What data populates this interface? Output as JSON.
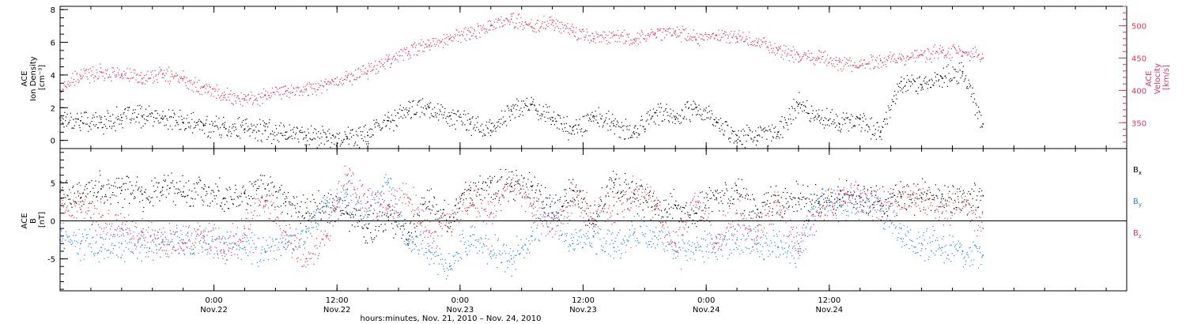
{
  "chart_data": [
    {
      "type": "scatter",
      "panel": "top",
      "left_axis_label": [
        "ACE",
        "Ion Density",
        "[cm⁻³]"
      ],
      "right_axis_label": [
        "ACE",
        "Velocity",
        "[km/s]"
      ],
      "left_ylim": [
        -0.5,
        8.2
      ],
      "right_ylim": [
        310,
        530
      ],
      "left_ticks": [
        "0",
        "2",
        "4",
        "6",
        "8"
      ],
      "left_tick_values": [
        0,
        2,
        4,
        6,
        8
      ],
      "right_ticks": [
        "350",
        "400",
        "450",
        "500"
      ],
      "right_tick_values": [
        350,
        400,
        450,
        500
      ],
      "right_color": "#e8335d",
      "series": [
        {
          "name": "Ion Density",
          "color": "#000000",
          "axis": "left",
          "x_hours": [
            0,
            2,
            4,
            6,
            8,
            10,
            12,
            14,
            16,
            18,
            20,
            22,
            24,
            26,
            28,
            30,
            32,
            34,
            36,
            38,
            40,
            42,
            44,
            46,
            48,
            50,
            52,
            54,
            56,
            58,
            60,
            62,
            64,
            66,
            68,
            70,
            72,
            74,
            76,
            78,
            80,
            82,
            84,
            86,
            88,
            90
          ],
          "values": [
            1.4,
            1.2,
            1.1,
            1.4,
            1.5,
            1.3,
            1.1,
            0.9,
            0.8,
            0.7,
            0.6,
            0.5,
            0.3,
            0.2,
            0.2,
            0.3,
            1.2,
            1.8,
            2.0,
            1.5,
            1.0,
            0.6,
            1.8,
            2.2,
            1.4,
            0.6,
            1.5,
            0.9,
            0.4,
            1.7,
            1.3,
            2.0,
            1.1,
            0.3,
            0.3,
            0.5,
            2.2,
            1.5,
            1.0,
            1.3,
            0.5,
            3.6,
            3.4,
            3.8,
            4.2,
            1.0
          ]
        },
        {
          "name": "Velocity",
          "color": "#e8335d",
          "axis": "right",
          "x_hours": [
            0,
            2,
            4,
            6,
            8,
            10,
            12,
            14,
            16,
            18,
            20,
            22,
            24,
            26,
            28,
            30,
            32,
            34,
            36,
            38,
            40,
            42,
            44,
            46,
            48,
            50,
            52,
            54,
            56,
            58,
            60,
            62,
            64,
            66,
            68,
            70,
            72,
            74,
            76,
            78,
            80,
            82,
            84,
            86,
            88,
            90
          ],
          "values": [
            400,
            422,
            428,
            425,
            418,
            425,
            418,
            405,
            392,
            385,
            392,
            398,
            402,
            410,
            420,
            430,
            448,
            460,
            470,
            480,
            490,
            500,
            510,
            498,
            505,
            490,
            480,
            485,
            478,
            488,
            492,
            478,
            485,
            480,
            474,
            462,
            455,
            450,
            444,
            438,
            446,
            448,
            455,
            458,
            460,
            450
          ]
        }
      ]
    },
    {
      "type": "scatter",
      "panel": "bottom",
      "left_axis_label": [
        "ACE",
        "B",
        "[nT]"
      ],
      "ylim": [
        -9.2,
        9.5
      ],
      "ticks": [
        "-5",
        "0",
        "5"
      ],
      "tick_values": [
        -5,
        0,
        5
      ],
      "zero_line": true,
      "series": [
        {
          "name": "Bx",
          "label_main": "B",
          "label_sub": "x",
          "color": "#000000",
          "x_hours": [
            0,
            2,
            4,
            6,
            8,
            10,
            12,
            14,
            16,
            18,
            20,
            22,
            24,
            26,
            28,
            30,
            32,
            34,
            36,
            38,
            40,
            42,
            44,
            46,
            48,
            50,
            52,
            54,
            56,
            58,
            60,
            62,
            64,
            66,
            68,
            70,
            72,
            74,
            76,
            78,
            80,
            82,
            84,
            86,
            88,
            90
          ],
          "values": [
            3.8,
            3.0,
            4.2,
            4.0,
            3.5,
            4.4,
            3.8,
            4.2,
            3.0,
            3.6,
            4.2,
            2.5,
            1.0,
            2.0,
            1.0,
            -1.0,
            0.5,
            -1.5,
            2.5,
            0.5,
            4.0,
            5.0,
            4.5,
            4.5,
            1.0,
            4.0,
            0.0,
            5.0,
            3.5,
            1.5,
            2.0,
            1.0,
            3.0,
            4.0,
            1.5,
            2.5,
            3.0,
            2.5,
            2.8,
            3.0,
            2.0,
            3.2,
            3.0,
            3.5,
            2.5,
            3.3
          ]
        },
        {
          "name": "By",
          "label_main": "B",
          "label_sub": "y",
          "color": "#1f86e0",
          "x_hours": [
            0,
            2,
            4,
            6,
            8,
            10,
            12,
            14,
            16,
            18,
            20,
            22,
            24,
            26,
            28,
            30,
            32,
            34,
            36,
            38,
            40,
            42,
            44,
            46,
            48,
            50,
            52,
            54,
            56,
            58,
            60,
            62,
            64,
            66,
            68,
            70,
            72,
            74,
            76,
            78,
            80,
            82,
            84,
            86,
            88,
            90
          ],
          "values": [
            -2.5,
            -3.0,
            -3.5,
            -3.0,
            -3.2,
            -2.8,
            -2.5,
            -2.8,
            -3.0,
            -3.5,
            -4.0,
            -3.0,
            -1.5,
            2.0,
            3.5,
            0.5,
            5.0,
            -3.0,
            -4.0,
            -6.0,
            -2.0,
            -4.0,
            -5.0,
            -2.0,
            1.0,
            -3.0,
            -2.0,
            -3.5,
            -1.5,
            -2.0,
            -4.0,
            -3.5,
            -3.0,
            -2.5,
            -3.0,
            -3.5,
            -4.0,
            3.0,
            2.0,
            2.5,
            1.5,
            -1.0,
            -3.0,
            -3.5,
            -4.0,
            -4.5
          ]
        },
        {
          "name": "Bz",
          "label_main": "B",
          "label_sub": "z",
          "color": "#e8335d",
          "x_hours": [
            0,
            2,
            4,
            6,
            8,
            10,
            12,
            14,
            16,
            18,
            20,
            22,
            24,
            26,
            28,
            30,
            32,
            34,
            36,
            38,
            40,
            42,
            44,
            46,
            48,
            50,
            52,
            54,
            56,
            58,
            60,
            62,
            64,
            66,
            68,
            70,
            72,
            74,
            76,
            78,
            80,
            82,
            84,
            86,
            88,
            90
          ],
          "values": [
            1.5,
            2.5,
            0.5,
            -1.0,
            -1.5,
            -2.5,
            -3.0,
            -2.0,
            -4.0,
            -1.0,
            2.5,
            -1.5,
            -5.0,
            -2.0,
            6.0,
            2.5,
            2.0,
            3.0,
            -1.5,
            0.0,
            3.0,
            1.0,
            5.0,
            2.0,
            -1.0,
            3.0,
            1.0,
            2.0,
            4.0,
            2.0,
            -3.0,
            2.5,
            -3.0,
            1.0,
            -2.0,
            2.5,
            -3.0,
            1.0,
            3.5,
            3.0,
            2.0,
            3.0,
            2.5,
            1.0,
            2.5,
            -1.0
          ]
        }
      ]
    }
  ],
  "x_axis": {
    "start_hours": 0,
    "end_hours": 104,
    "ticks": [
      {
        "hours": 15,
        "time": "0:00",
        "date": "Nov.22"
      },
      {
        "hours": 27,
        "time": "12:00",
        "date": "Nov.22"
      },
      {
        "hours": 39,
        "time": "0:00",
        "date": "Nov.23"
      },
      {
        "hours": 51,
        "time": "12:00",
        "date": "Nov.23"
      },
      {
        "hours": 63,
        "time": "0:00",
        "date": "Nov.24"
      },
      {
        "hours": 75,
        "time": "12:00",
        "date": "Nov.24"
      }
    ],
    "title": "hours:minutes, Nov. 21, 2010 – Nov. 24, 2010"
  }
}
